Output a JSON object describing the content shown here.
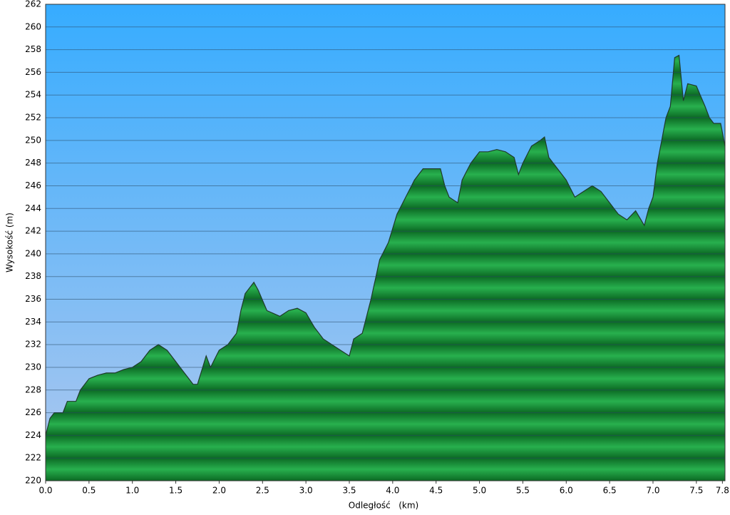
{
  "chart_data": {
    "type": "area",
    "x_label": "Odległość   (km)",
    "y_label": "Wysokość (m)",
    "x": [
      0.0,
      0.05,
      0.1,
      0.2,
      0.25,
      0.35,
      0.4,
      0.5,
      0.6,
      0.7,
      0.8,
      0.9,
      1.0,
      1.1,
      1.2,
      1.3,
      1.4,
      1.5,
      1.6,
      1.7,
      1.75,
      1.85,
      1.9,
      2.0,
      2.1,
      2.2,
      2.25,
      2.3,
      2.4,
      2.45,
      2.55,
      2.7,
      2.8,
      2.9,
      3.0,
      3.1,
      3.2,
      3.3,
      3.4,
      3.5,
      3.55,
      3.65,
      3.75,
      3.85,
      3.95,
      4.05,
      4.15,
      4.25,
      4.35,
      4.45,
      4.55,
      4.6,
      4.65,
      4.75,
      4.8,
      4.9,
      5.0,
      5.1,
      5.2,
      5.3,
      5.4,
      5.45,
      5.5,
      5.6,
      5.7,
      5.75,
      5.8,
      5.9,
      6.0,
      6.1,
      6.2,
      6.3,
      6.4,
      6.5,
      6.6,
      6.7,
      6.8,
      6.9,
      6.95,
      7.0,
      7.05,
      7.1,
      7.15,
      7.2,
      7.25,
      7.3,
      7.35,
      7.4,
      7.5,
      7.6,
      7.65,
      7.7,
      7.78,
      7.83
    ],
    "series": [
      {
        "color": "#1e9e44",
        "values": [
          224,
          225.5,
          226,
          226,
          227,
          227,
          228,
          229,
          229.3,
          229.5,
          229.5,
          229.8,
          230,
          230.5,
          231.5,
          232,
          231.5,
          230.5,
          229.5,
          228.5,
          228.5,
          231,
          230,
          231.5,
          232,
          233,
          235,
          236.5,
          237.5,
          236.8,
          235,
          234.5,
          235,
          235.2,
          234.8,
          233.5,
          232.5,
          232,
          231.5,
          231,
          232.5,
          233,
          236,
          239.5,
          241,
          243.5,
          245,
          246.5,
          247.5,
          247.5,
          247.5,
          246,
          245,
          244.5,
          246.5,
          248,
          249,
          249,
          249.2,
          249,
          248.5,
          247,
          248,
          249.5,
          250,
          250.3,
          248.5,
          247.5,
          246.5,
          245,
          245.5,
          246,
          245.5,
          244.5,
          243.5,
          243,
          243.8,
          242.5,
          244,
          245,
          248,
          250,
          252,
          253,
          257.3,
          257.5,
          253.5,
          255,
          254.8,
          253,
          252,
          251.5,
          251.5,
          249.5
        ]
      }
    ],
    "xlim": [
      0,
      7.83
    ],
    "xticks": [
      {
        "value": 0,
        "label": "0.0"
      },
      0.5,
      {
        "value": 1,
        "label": "1.0"
      },
      1.5,
      {
        "value": 2,
        "label": "2.0"
      },
      2.5,
      {
        "value": 3,
        "label": "3.0"
      },
      3.5,
      {
        "value": 4,
        "label": "4.0"
      },
      4.5,
      {
        "value": 5,
        "label": "5.0"
      },
      5.5,
      {
        "value": 6,
        "label": "6.0"
      },
      6.5,
      {
        "value": 7,
        "label": "7.0"
      },
      7.5,
      7.8
    ],
    "ylim": [
      220,
      262
    ],
    "yticks": [
      220,
      222,
      224,
      226,
      228,
      230,
      232,
      234,
      236,
      238,
      240,
      242,
      244,
      246,
      248,
      250,
      252,
      254,
      256,
      258,
      260,
      262
    ],
    "grid": true
  }
}
